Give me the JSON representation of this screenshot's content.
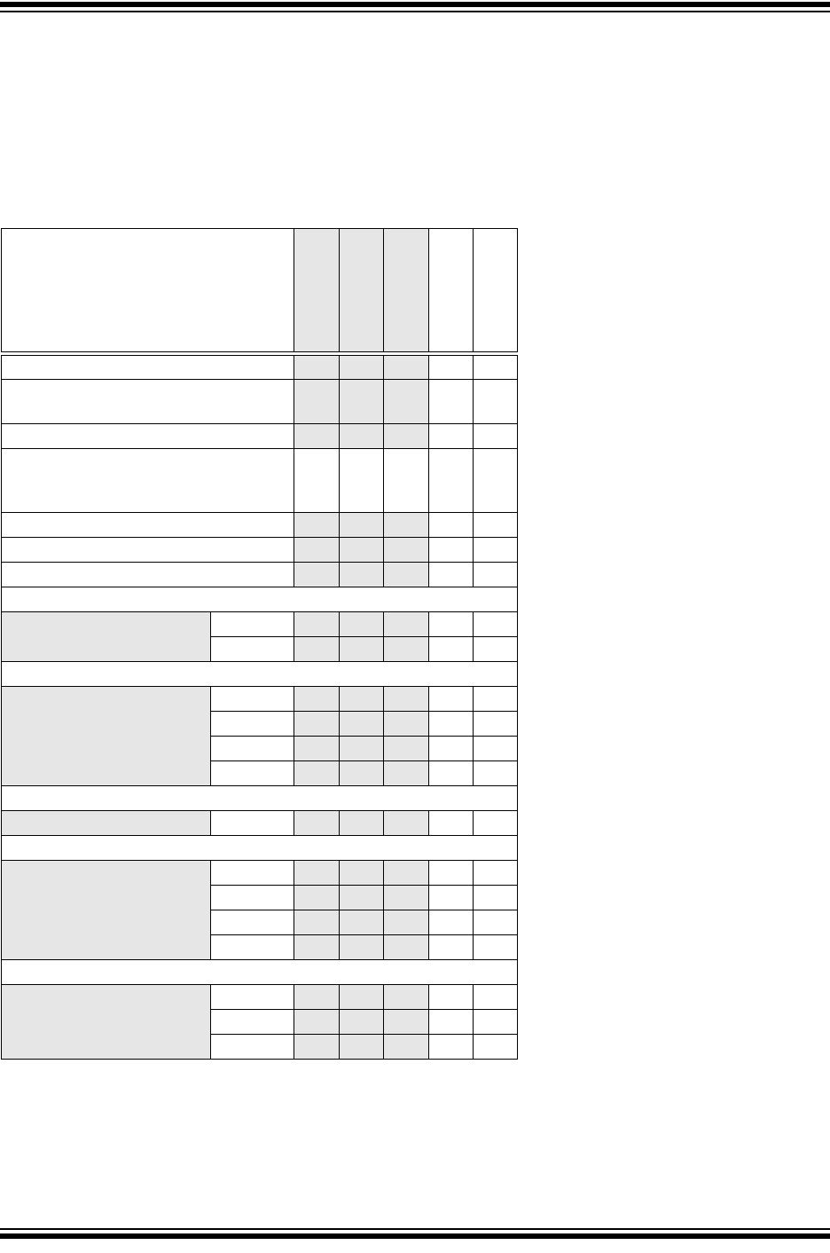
{
  "document": {
    "header_rule": true,
    "footer_rule": true
  },
  "colors": {
    "shade": "#e6e6e6",
    "rule": "#000000"
  },
  "table": {
    "columns": [
      "",
      "",
      "",
      "",
      "",
      "",
      ""
    ],
    "rows": []
  }
}
